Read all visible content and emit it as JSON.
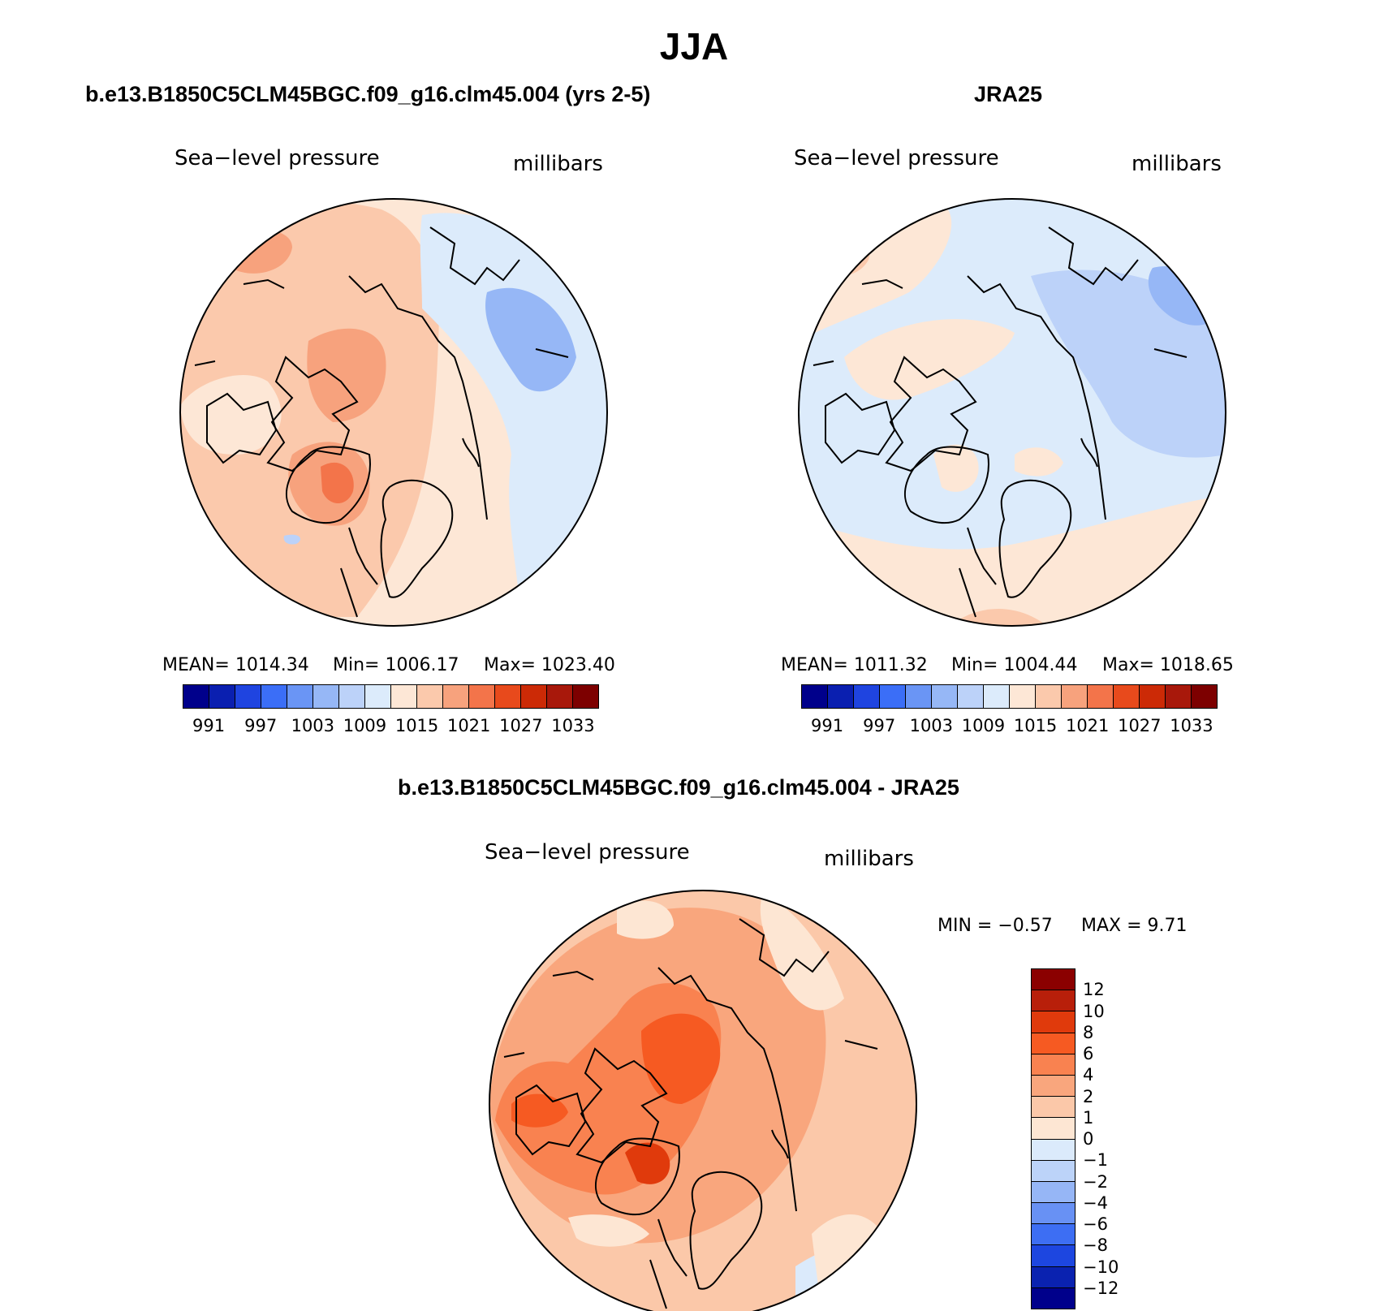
{
  "title": "JJA",
  "panels": {
    "model": {
      "case_title": "b.e13.B1850C5CLM45BGC.f09_g16.clm45.004 (yrs 2-5)",
      "variable": "Sea−level pressure",
      "units": "millibars",
      "stats": {
        "mean": "MEAN=  1014.34",
        "min": "Min=  1006.17",
        "max": "Max=  1023.40"
      }
    },
    "obs": {
      "case_title": "JRA25",
      "variable": "Sea−level pressure",
      "units": "millibars",
      "stats": {
        "mean": "MEAN=  1011.32",
        "min": "Min=  1004.44",
        "max": "Max=  1018.65"
      }
    },
    "diff": {
      "case_title": "b.e13.B1850C5CLM45BGC.f09_g16.clm45.004 - JRA25",
      "variable": "Sea−level pressure",
      "units": "millibars",
      "stats": {
        "min": "MIN =   −0.57",
        "max": "MAX =     9.71"
      }
    }
  },
  "colorbars": {
    "abs": {
      "colors": [
        "#00008b",
        "#0a1fb0",
        "#1f44e0",
        "#3b6ef7",
        "#6a95f5",
        "#96b7f6",
        "#bcd2f9",
        "#dcebfb",
        "#fde7d6",
        "#fbc9ac",
        "#f7a27d",
        "#f3744a",
        "#e84a1c",
        "#cc2a06",
        "#a8180b",
        "#7d0000"
      ],
      "labels": [
        "991",
        "997",
        "1003",
        "1009",
        "1015",
        "1021",
        "1027",
        "1033"
      ]
    },
    "diff": {
      "colors_top_to_bottom": [
        "#8b0000",
        "#b81f0a",
        "#e03a0c",
        "#f65a22",
        "#f98250",
        "#f9a67d",
        "#fbc8a9",
        "#fde6d3",
        "#dbeafb",
        "#bcd3f9",
        "#96b6f6",
        "#6891f4",
        "#3d6ef3",
        "#1d46e0",
        "#0a22b0",
        "#00008b"
      ],
      "labels": [
        "12",
        "10",
        "8",
        "6",
        "4",
        "2",
        "1",
        "0",
        "−1",
        "−2",
        "−4",
        "−6",
        "−8",
        "−10",
        "−12"
      ]
    }
  }
}
